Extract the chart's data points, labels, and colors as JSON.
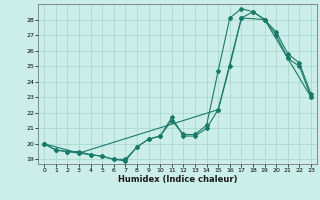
{
  "xlabel": "Humidex (Indice chaleur)",
  "background_color": "#cceee8",
  "grid_color": "#aad8d0",
  "line_color": "#1a7a6a",
  "xlim": [
    -0.5,
    23.5
  ],
  "ylim": [
    18.7,
    29.0
  ],
  "yticks": [
    19,
    20,
    21,
    22,
    23,
    24,
    25,
    26,
    27,
    28
  ],
  "xticks": [
    0,
    1,
    2,
    3,
    4,
    5,
    6,
    7,
    8,
    9,
    10,
    11,
    12,
    13,
    14,
    15,
    16,
    17,
    18,
    19,
    20,
    21,
    22,
    23
  ],
  "series1_x": [
    0,
    1,
    2,
    3,
    4,
    5,
    6,
    7,
    8,
    9,
    10,
    11,
    12,
    13,
    14,
    15,
    16,
    17,
    18,
    19,
    20,
    21,
    22,
    23
  ],
  "series1_y": [
    20.0,
    19.6,
    19.5,
    19.5,
    19.3,
    19.2,
    19.0,
    18.9,
    19.8,
    20.3,
    20.5,
    21.7,
    20.5,
    20.5,
    21.0,
    22.2,
    25.0,
    28.1,
    28.5,
    28.0,
    27.0,
    25.5,
    25.0,
    23.0
  ],
  "series2_x": [
    0,
    1,
    2,
    3,
    4,
    5,
    6,
    7,
    8,
    9,
    10,
    11,
    12,
    13,
    14,
    15,
    16,
    17,
    18,
    19,
    20,
    21,
    22,
    23
  ],
  "series2_y": [
    20.0,
    19.6,
    19.5,
    19.4,
    19.3,
    19.2,
    19.0,
    19.0,
    19.8,
    20.3,
    20.5,
    21.5,
    20.6,
    20.6,
    21.2,
    24.7,
    28.1,
    28.7,
    28.5,
    28.0,
    27.2,
    25.8,
    25.2,
    23.2
  ],
  "series3_x": [
    0,
    3,
    15,
    17,
    19,
    21,
    23
  ],
  "series3_y": [
    20.0,
    19.4,
    22.2,
    28.1,
    28.0,
    25.5,
    23.0
  ]
}
